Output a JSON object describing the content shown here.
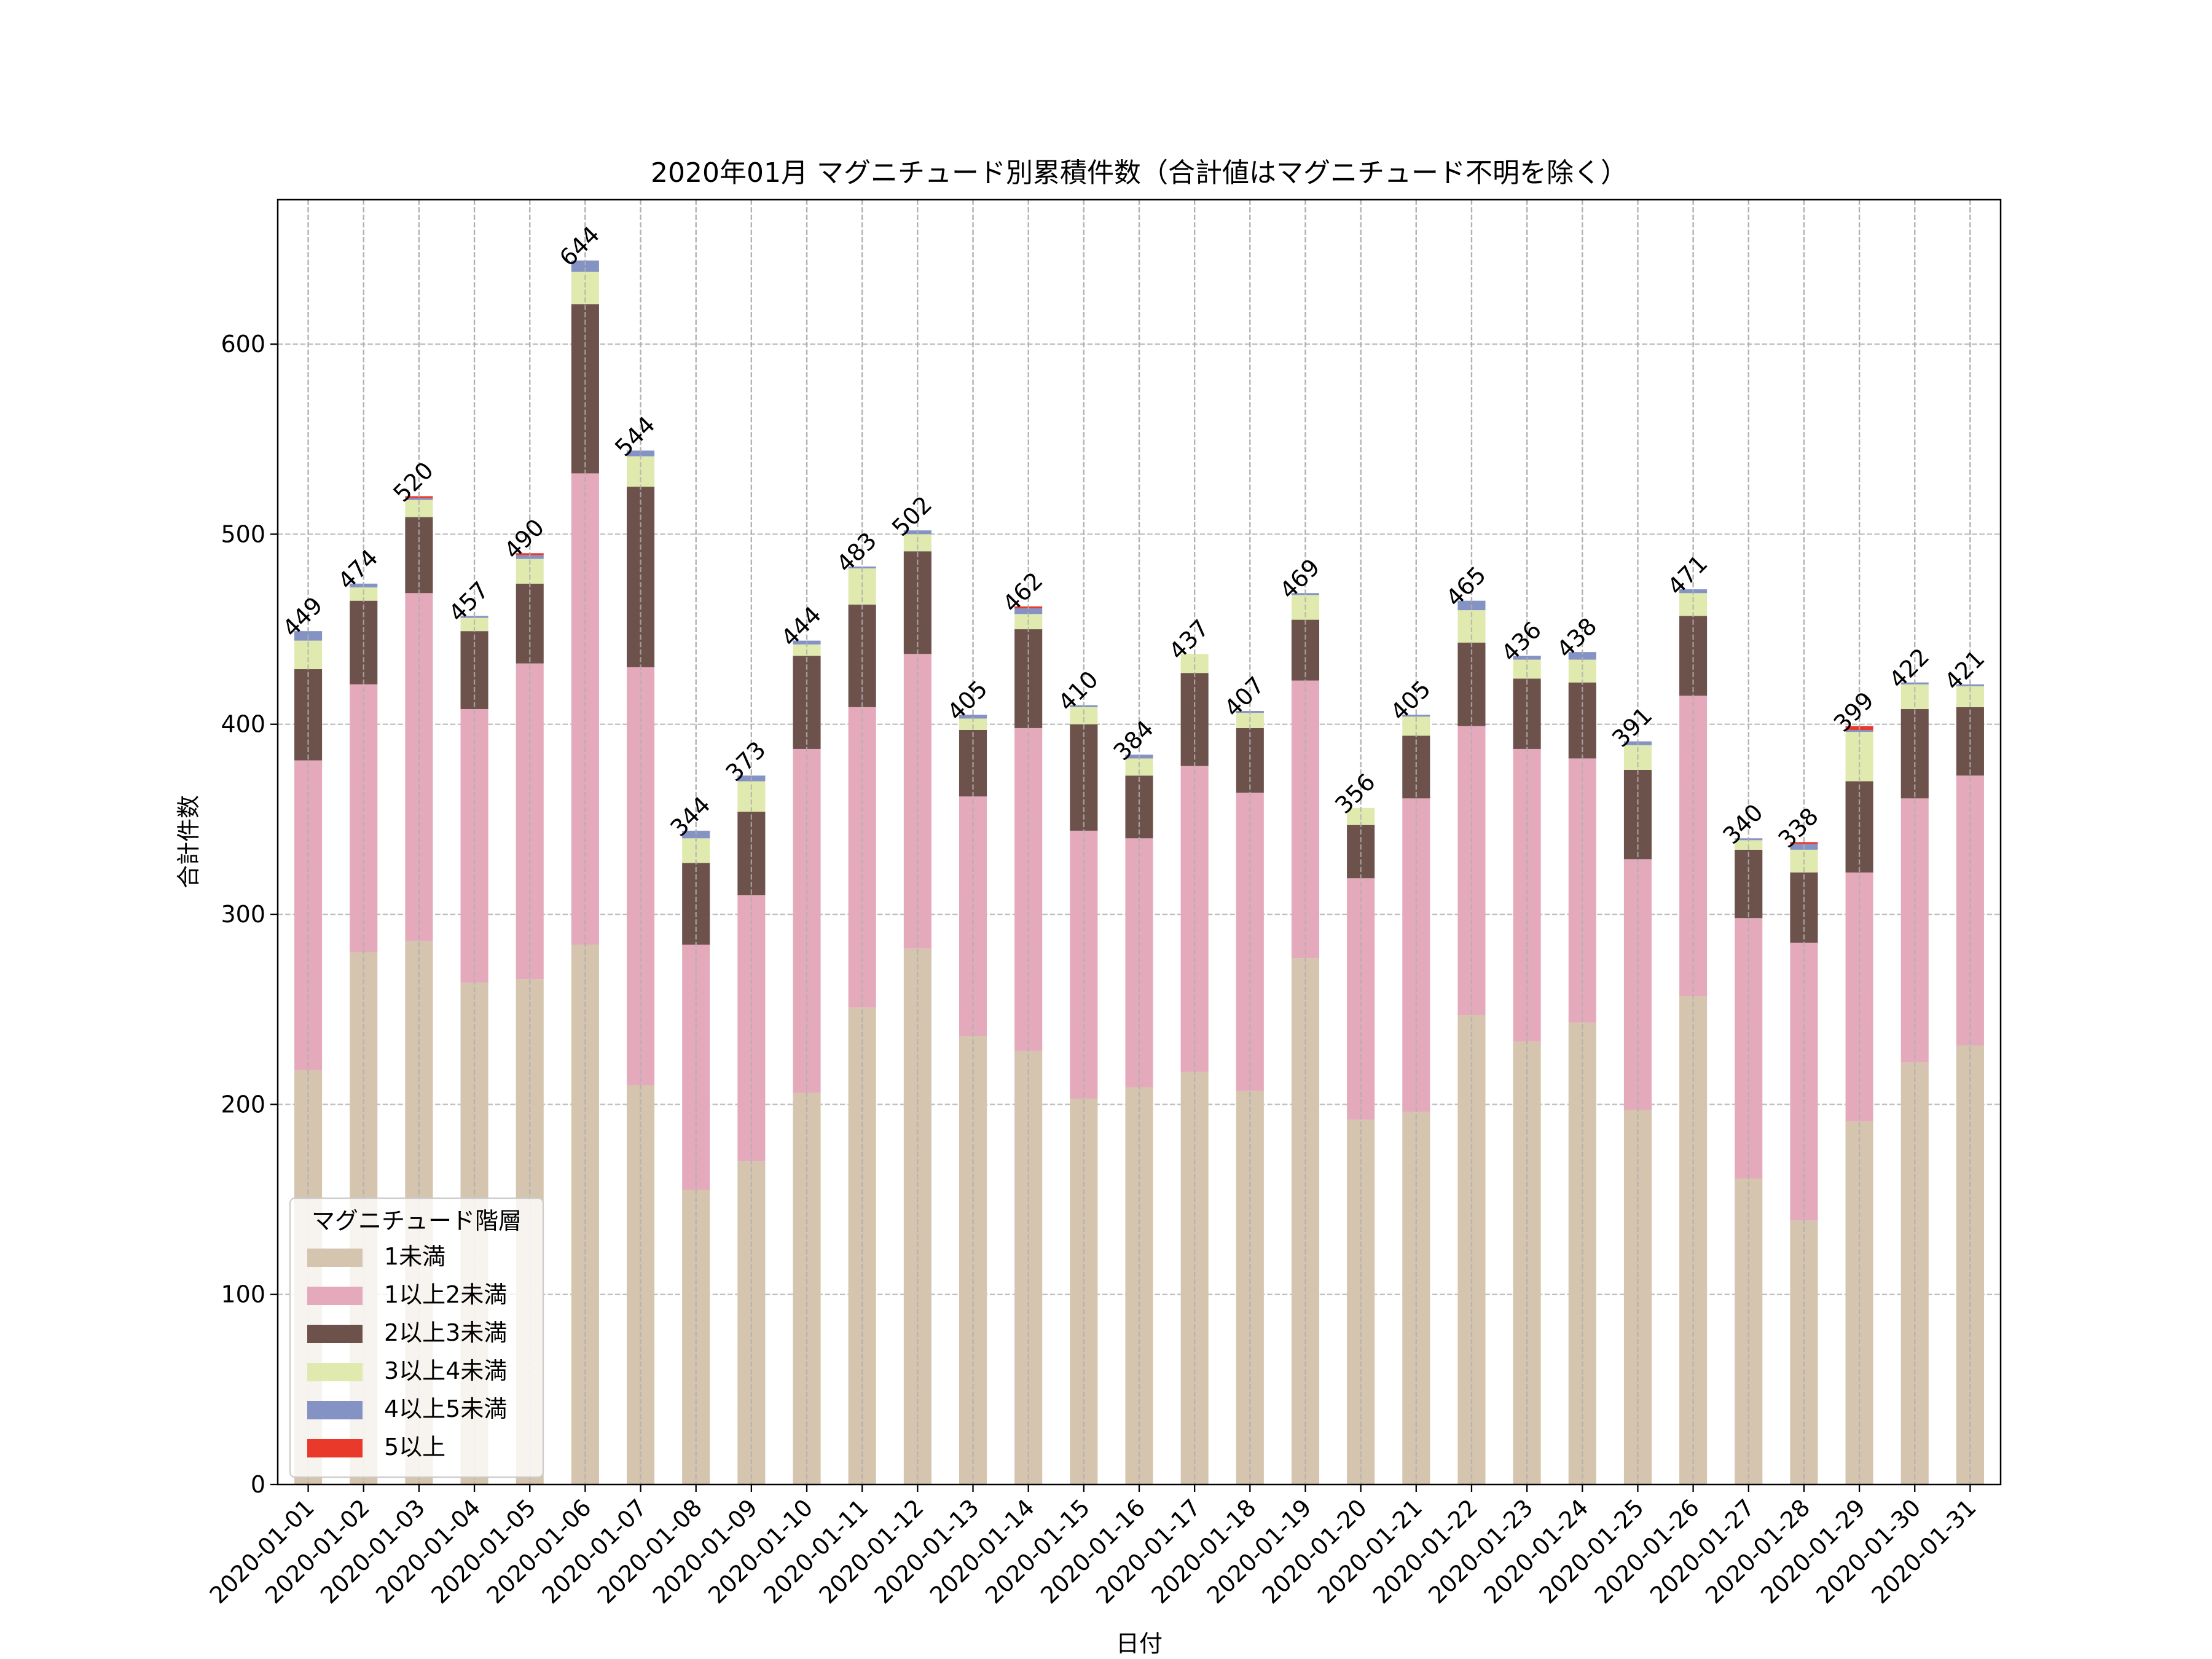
{
  "chart_data": {
    "type": "bar",
    "stacked": true,
    "title": "2020年01月 マグニチュード別累積件数（合計値はマグニチュード不明を除く）",
    "xlabel": "日付",
    "ylabel": "合計件数",
    "ylim": [
      0,
      676
    ],
    "yticks": [
      0,
      100,
      200,
      300,
      400,
      500,
      600
    ],
    "grid": true,
    "legend": {
      "title": "マグニチュード階層",
      "placement": "lower-left"
    },
    "categories": [
      "2020-01-01",
      "2020-01-02",
      "2020-01-03",
      "2020-01-04",
      "2020-01-05",
      "2020-01-06",
      "2020-01-07",
      "2020-01-08",
      "2020-01-09",
      "2020-01-10",
      "2020-01-11",
      "2020-01-12",
      "2020-01-13",
      "2020-01-14",
      "2020-01-15",
      "2020-01-16",
      "2020-01-17",
      "2020-01-18",
      "2020-01-19",
      "2020-01-20",
      "2020-01-21",
      "2020-01-22",
      "2020-01-23",
      "2020-01-24",
      "2020-01-25",
      "2020-01-26",
      "2020-01-27",
      "2020-01-28",
      "2020-01-29",
      "2020-01-30",
      "2020-01-31"
    ],
    "series": [
      {
        "name": "1未満",
        "color": "#d5c4ae",
        "values": [
          218,
          280,
          286,
          264,
          266,
          284,
          210,
          155,
          170,
          206,
          251,
          282,
          236,
          228,
          203,
          209,
          217,
          207,
          277,
          192,
          196,
          247,
          233,
          243,
          197,
          257,
          161,
          139,
          191,
          222,
          231
        ]
      },
      {
        "name": "1以上2未満",
        "color": "#e4aabb",
        "values": [
          163,
          141,
          183,
          144,
          166,
          248,
          220,
          129,
          140,
          181,
          158,
          155,
          126,
          170,
          141,
          131,
          161,
          157,
          146,
          127,
          165,
          152,
          154,
          139,
          132,
          158,
          137,
          146,
          131,
          139,
          142
        ]
      },
      {
        "name": "2以上3未満",
        "color": "#6d514b",
        "values": [
          48,
          44,
          40,
          41,
          42,
          89,
          95,
          43,
          44,
          49,
          54,
          54,
          35,
          52,
          56,
          33,
          49,
          34,
          32,
          28,
          33,
          44,
          37,
          40,
          47,
          42,
          36,
          37,
          48,
          47,
          36
        ]
      },
      {
        "name": "3以上4未満",
        "color": "#e0eaaf",
        "values": [
          15,
          7,
          9,
          7,
          13,
          17,
          16,
          13,
          16,
          6,
          19,
          9,
          6,
          8,
          9,
          9,
          10,
          8,
          13,
          9,
          10,
          17,
          10,
          12,
          13,
          12,
          5,
          12,
          26,
          13,
          11
        ]
      },
      {
        "name": "4以上5未満",
        "color": "#8592c4",
        "values": [
          5,
          2,
          1,
          1,
          2,
          6,
          3,
          4,
          3,
          2,
          1,
          2,
          2,
          3,
          1,
          2,
          0,
          1,
          1,
          0,
          1,
          5,
          2,
          4,
          2,
          2,
          1,
          3,
          1,
          1,
          1
        ]
      },
      {
        "name": "5以上",
        "color": "#e8392b",
        "values": [
          0,
          0,
          1,
          0,
          1,
          0,
          0,
          0,
          0,
          0,
          0,
          0,
          0,
          1,
          0,
          0,
          0,
          0,
          0,
          0,
          0,
          0,
          0,
          0,
          0,
          0,
          0,
          1,
          2,
          0,
          0
        ]
      }
    ],
    "totals": [
      449,
      474,
      520,
      457,
      490,
      644,
      544,
      344,
      373,
      444,
      483,
      502,
      405,
      462,
      410,
      384,
      437,
      407,
      469,
      356,
      405,
      465,
      436,
      438,
      391,
      471,
      340,
      338,
      399,
      422,
      421
    ]
  }
}
